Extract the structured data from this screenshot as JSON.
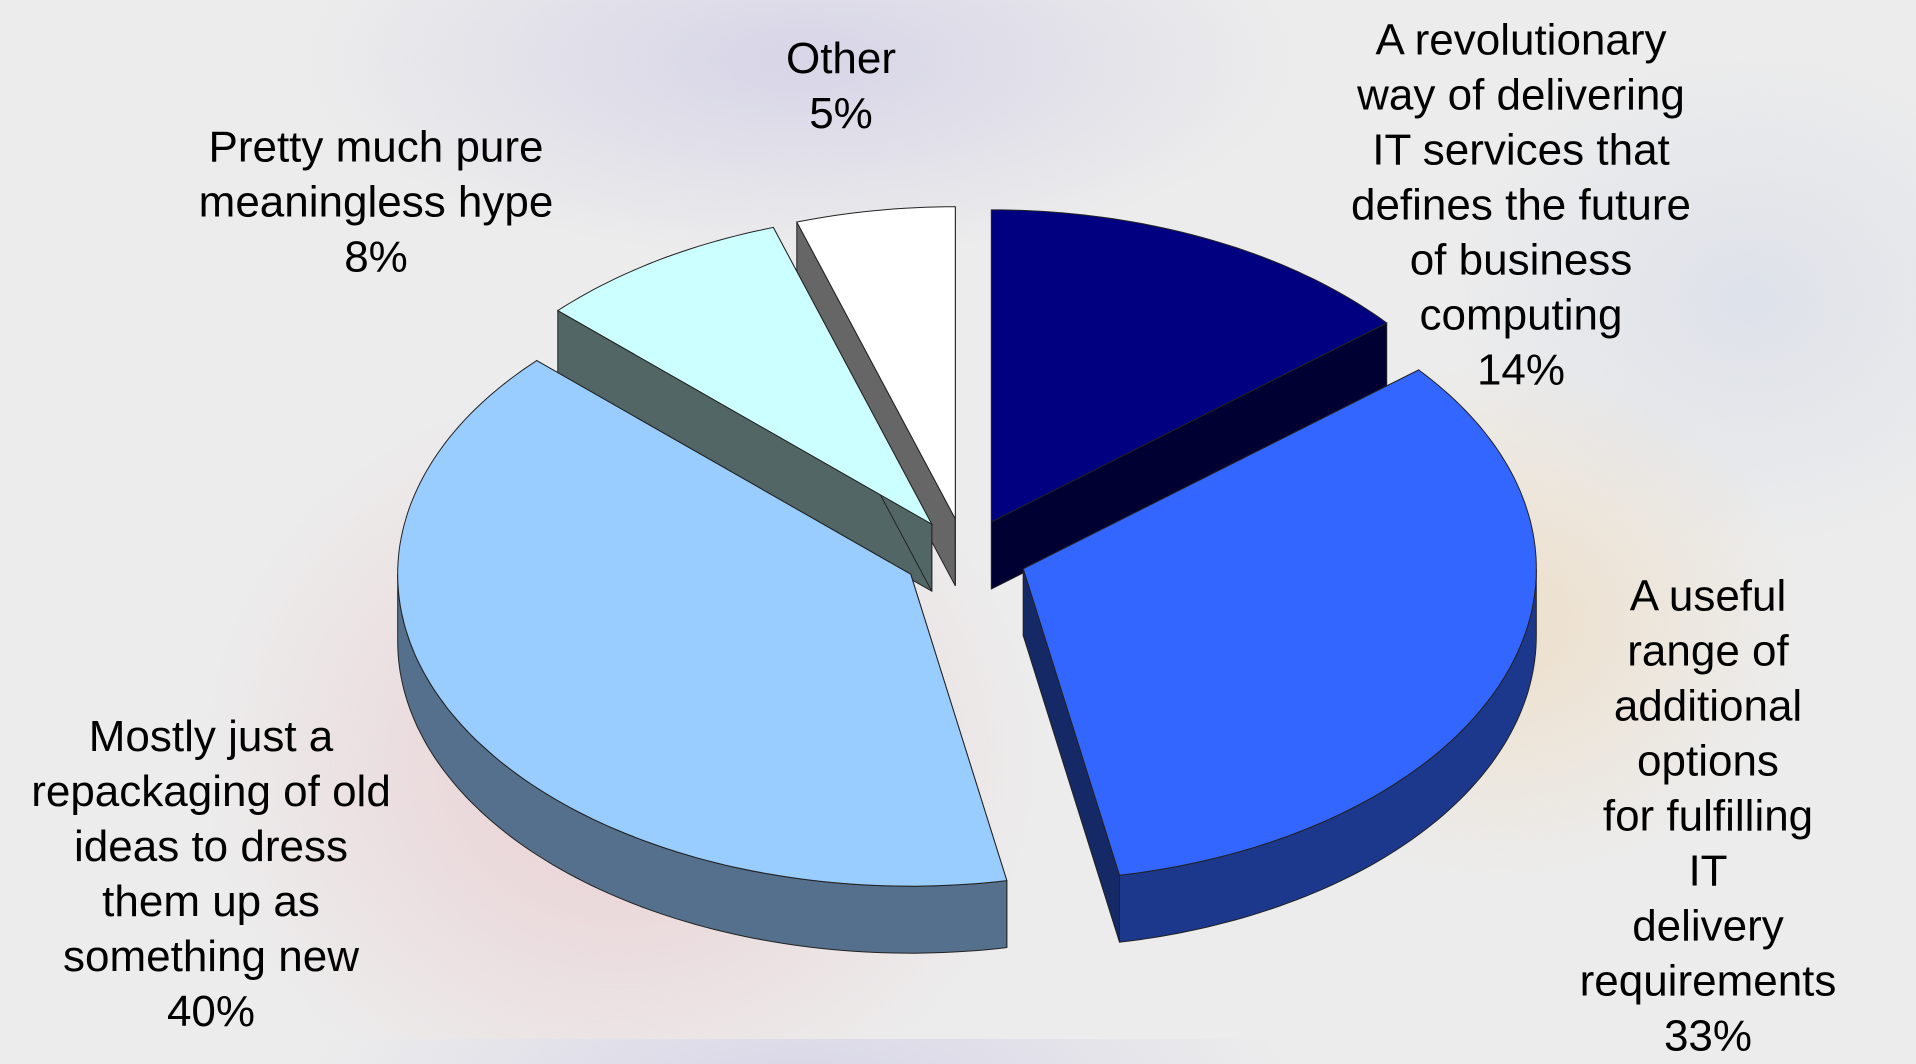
{
  "chart_data": {
    "type": "pie3d",
    "categories": [
      "A revolutionary\nway of delivering\nIT services that\ndefines the future\nof business\ncomputing",
      "A useful range of\nadditional options\nfor fulfilling IT\ndelivery\nrequirements",
      "Mostly just a\nrepackaging of old\nideas to dress\nthem up as\nsomething new",
      "Pretty much pure\nmeaningless hype",
      "Other"
    ],
    "values": [
      14,
      33,
      40,
      8,
      5
    ],
    "value_labels": [
      "14%",
      "33%",
      "40%",
      "8%",
      "5%"
    ],
    "colors": [
      "#000080",
      "#3366ff",
      "#99ccff",
      "#ccffff",
      "#ffffff"
    ],
    "exploded": true
  }
}
